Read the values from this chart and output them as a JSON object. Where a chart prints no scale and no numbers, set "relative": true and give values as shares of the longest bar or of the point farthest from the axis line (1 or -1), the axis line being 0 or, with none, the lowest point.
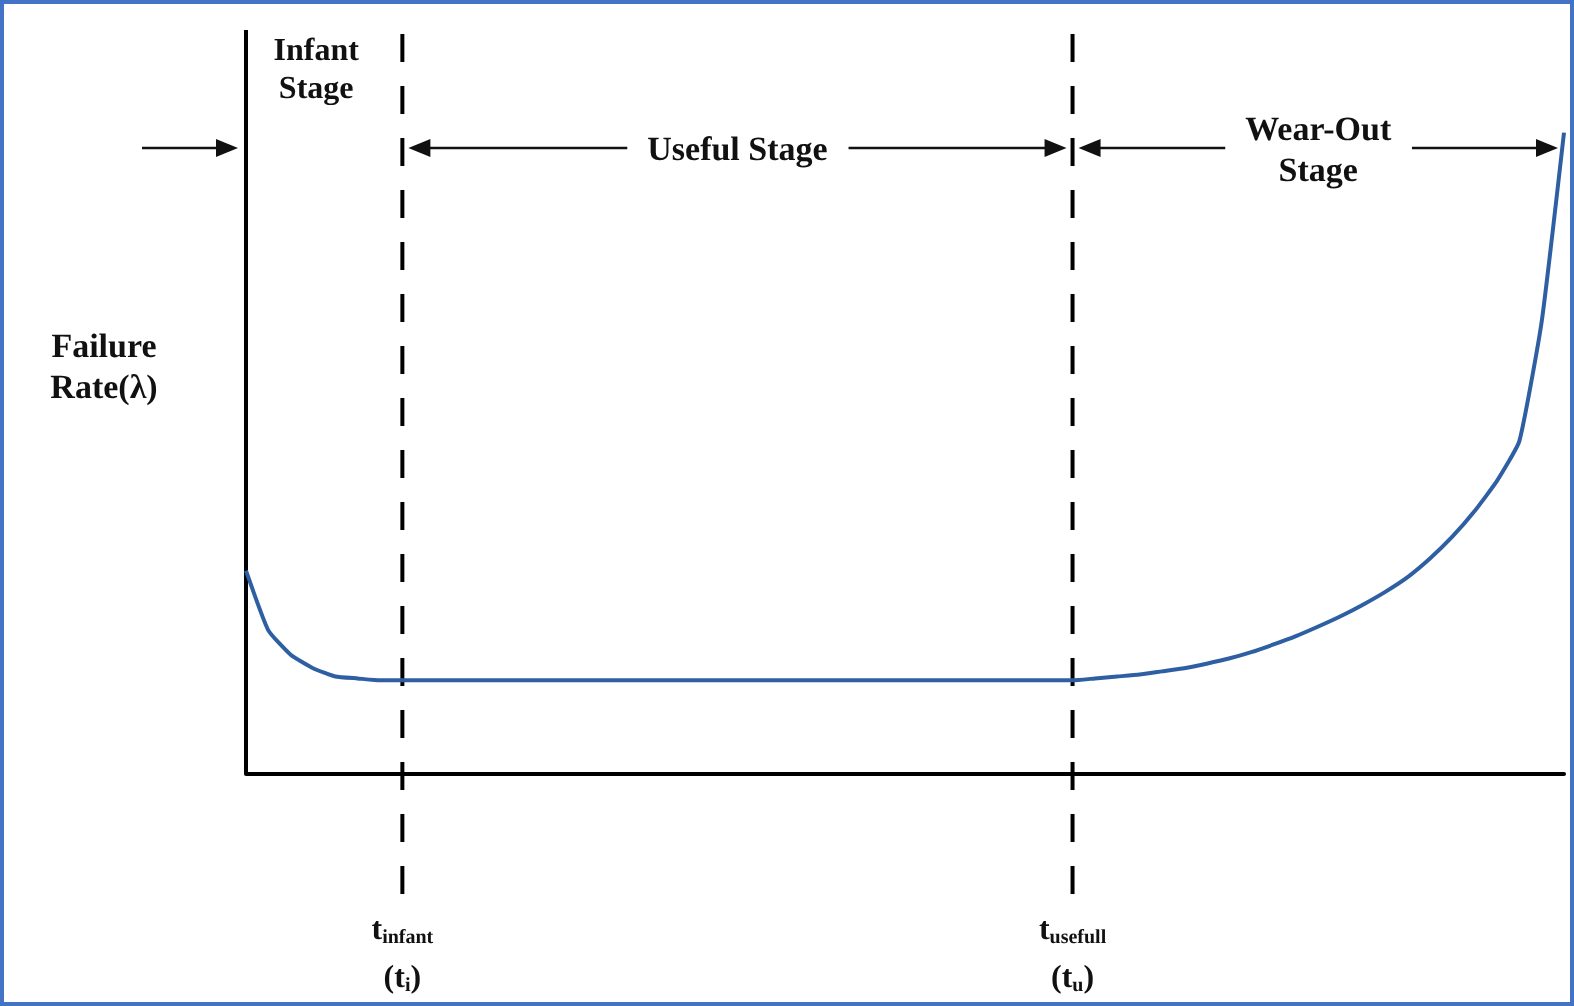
{
  "chart_data": {
    "type": "line",
    "relative": true,
    "ylabel": "Failure\nRate(λ)",
    "color": "#2e5fa3",
    "marker": "none",
    "grid": false,
    "tick_labels": "x",
    "categories": [
      null,
      null,
      null,
      null,
      null,
      null,
      null,
      "t$_{infant}$\n(t$_{i}$)",
      null,
      null,
      null,
      null,
      null,
      null,
      null,
      null,
      null,
      null,
      null,
      null,
      null,
      null,
      null,
      null,
      null,
      null,
      null,
      null,
      null,
      null,
      null,
      null,
      null,
      null,
      null,
      null,
      null,
      "t$_{usefull}$\n(t$_{u}$)",
      null,
      null,
      null,
      null,
      null,
      null,
      null,
      null,
      null,
      null,
      null,
      null,
      null,
      null,
      null,
      null,
      null,
      null,
      null,
      null,
      null,
      null
    ],
    "values": [
      0.317,
      0.224,
      0.186,
      0.165,
      0.152,
      0.149,
      0.146,
      0.146,
      0.146,
      0.146,
      0.146,
      0.146,
      0.146,
      0.146,
      0.146,
      0.146,
      0.146,
      0.146,
      0.146,
      0.146,
      0.146,
      0.146,
      0.146,
      0.146,
      0.146,
      0.146,
      0.146,
      0.146,
      0.146,
      0.146,
      0.146,
      0.146,
      0.146,
      0.146,
      0.146,
      0.146,
      0.146,
      0.146,
      0.149,
      0.152,
      0.155,
      0.16,
      0.165,
      0.172,
      0.18,
      0.19,
      0.202,
      0.215,
      0.23,
      0.246,
      0.264,
      0.284,
      0.307,
      0.336,
      0.37,
      0.41,
      0.457,
      0.519,
      0.705,
      1
    ],
    "ref_lines": [
      {
        "axis": "x",
        "value": "t$_{infant}$\n(t$_{i}$)",
        "color": "#000000",
        "line_style": "dashed"
      },
      {
        "axis": "x",
        "value": "t$_{usefull}$\n(t$_{u}$)",
        "color": "#000000",
        "line_style": "dashed"
      }
    ],
    "annotations": [
      "Infant\nStage",
      "Useful Stage",
      "Wear-Out\nStage"
    ]
  }
}
